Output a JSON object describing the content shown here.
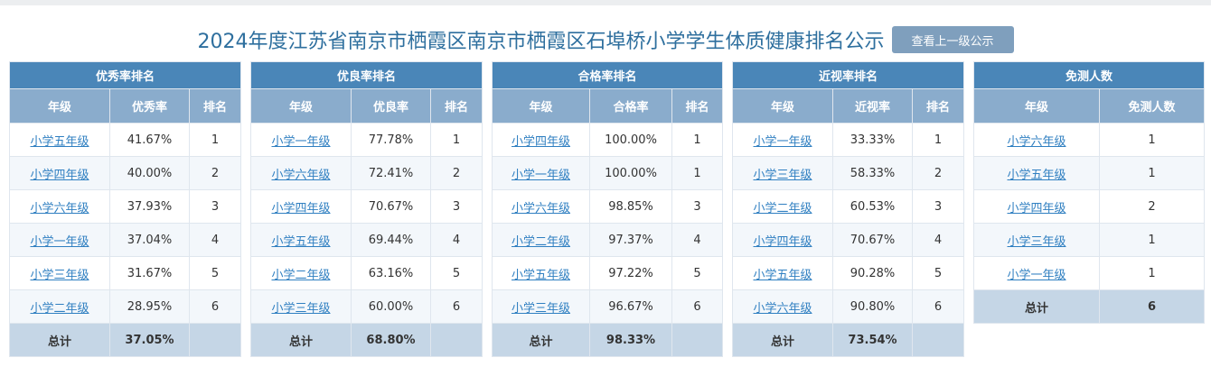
{
  "title": "2024年度江苏省南京市栖霞区南京市栖霞区石埠桥小学学生体质健康排名公示",
  "back_button": "查看上一级公示",
  "tables": [
    {
      "caption": "优秀率排名",
      "headers": [
        "年级",
        "优秀率",
        "排名"
      ],
      "rows": [
        {
          "grade": "小学五年级",
          "value": "41.67%",
          "rank": "1"
        },
        {
          "grade": "小学四年级",
          "value": "40.00%",
          "rank": "2"
        },
        {
          "grade": "小学六年级",
          "value": "37.93%",
          "rank": "3"
        },
        {
          "grade": "小学一年级",
          "value": "37.04%",
          "rank": "4"
        },
        {
          "grade": "小学三年级",
          "value": "31.67%",
          "rank": "5"
        },
        {
          "grade": "小学二年级",
          "value": "28.95%",
          "rank": "6"
        }
      ],
      "total_label": "总计",
      "total_value": "37.05%"
    },
    {
      "caption": "优良率排名",
      "headers": [
        "年级",
        "优良率",
        "排名"
      ],
      "rows": [
        {
          "grade": "小学一年级",
          "value": "77.78%",
          "rank": "1"
        },
        {
          "grade": "小学六年级",
          "value": "72.41%",
          "rank": "2"
        },
        {
          "grade": "小学四年级",
          "value": "70.67%",
          "rank": "3"
        },
        {
          "grade": "小学五年级",
          "value": "69.44%",
          "rank": "4"
        },
        {
          "grade": "小学二年级",
          "value": "63.16%",
          "rank": "5"
        },
        {
          "grade": "小学三年级",
          "value": "60.00%",
          "rank": "6"
        }
      ],
      "total_label": "总计",
      "total_value": "68.80%"
    },
    {
      "caption": "合格率排名",
      "headers": [
        "年级",
        "合格率",
        "排名"
      ],
      "rows": [
        {
          "grade": "小学四年级",
          "value": "100.00%",
          "rank": "1"
        },
        {
          "grade": "小学一年级",
          "value": "100.00%",
          "rank": "1"
        },
        {
          "grade": "小学六年级",
          "value": "98.85%",
          "rank": "3"
        },
        {
          "grade": "小学二年级",
          "value": "97.37%",
          "rank": "4"
        },
        {
          "grade": "小学五年级",
          "value": "97.22%",
          "rank": "5"
        },
        {
          "grade": "小学三年级",
          "value": "96.67%",
          "rank": "6"
        }
      ],
      "total_label": "总计",
      "total_value": "98.33%"
    },
    {
      "caption": "近视率排名",
      "headers": [
        "年级",
        "近视率",
        "排名"
      ],
      "rows": [
        {
          "grade": "小学一年级",
          "value": "33.33%",
          "rank": "1"
        },
        {
          "grade": "小学三年级",
          "value": "58.33%",
          "rank": "2"
        },
        {
          "grade": "小学二年级",
          "value": "60.53%",
          "rank": "3"
        },
        {
          "grade": "小学四年级",
          "value": "70.67%",
          "rank": "4"
        },
        {
          "grade": "小学五年级",
          "value": "90.28%",
          "rank": "5"
        },
        {
          "grade": "小学六年级",
          "value": "90.80%",
          "rank": "6"
        }
      ],
      "total_label": "总计",
      "total_value": "73.54%"
    }
  ],
  "exempt": {
    "caption": "免测人数",
    "headers": [
      "年级",
      "免测人数"
    ],
    "rows": [
      {
        "grade": "小学六年级",
        "count": "1"
      },
      {
        "grade": "小学五年级",
        "count": "1"
      },
      {
        "grade": "小学四年级",
        "count": "2"
      },
      {
        "grade": "小学三年级",
        "count": "1"
      },
      {
        "grade": "小学一年级",
        "count": "1"
      }
    ],
    "total_label": "总计",
    "total_value": "6"
  }
}
